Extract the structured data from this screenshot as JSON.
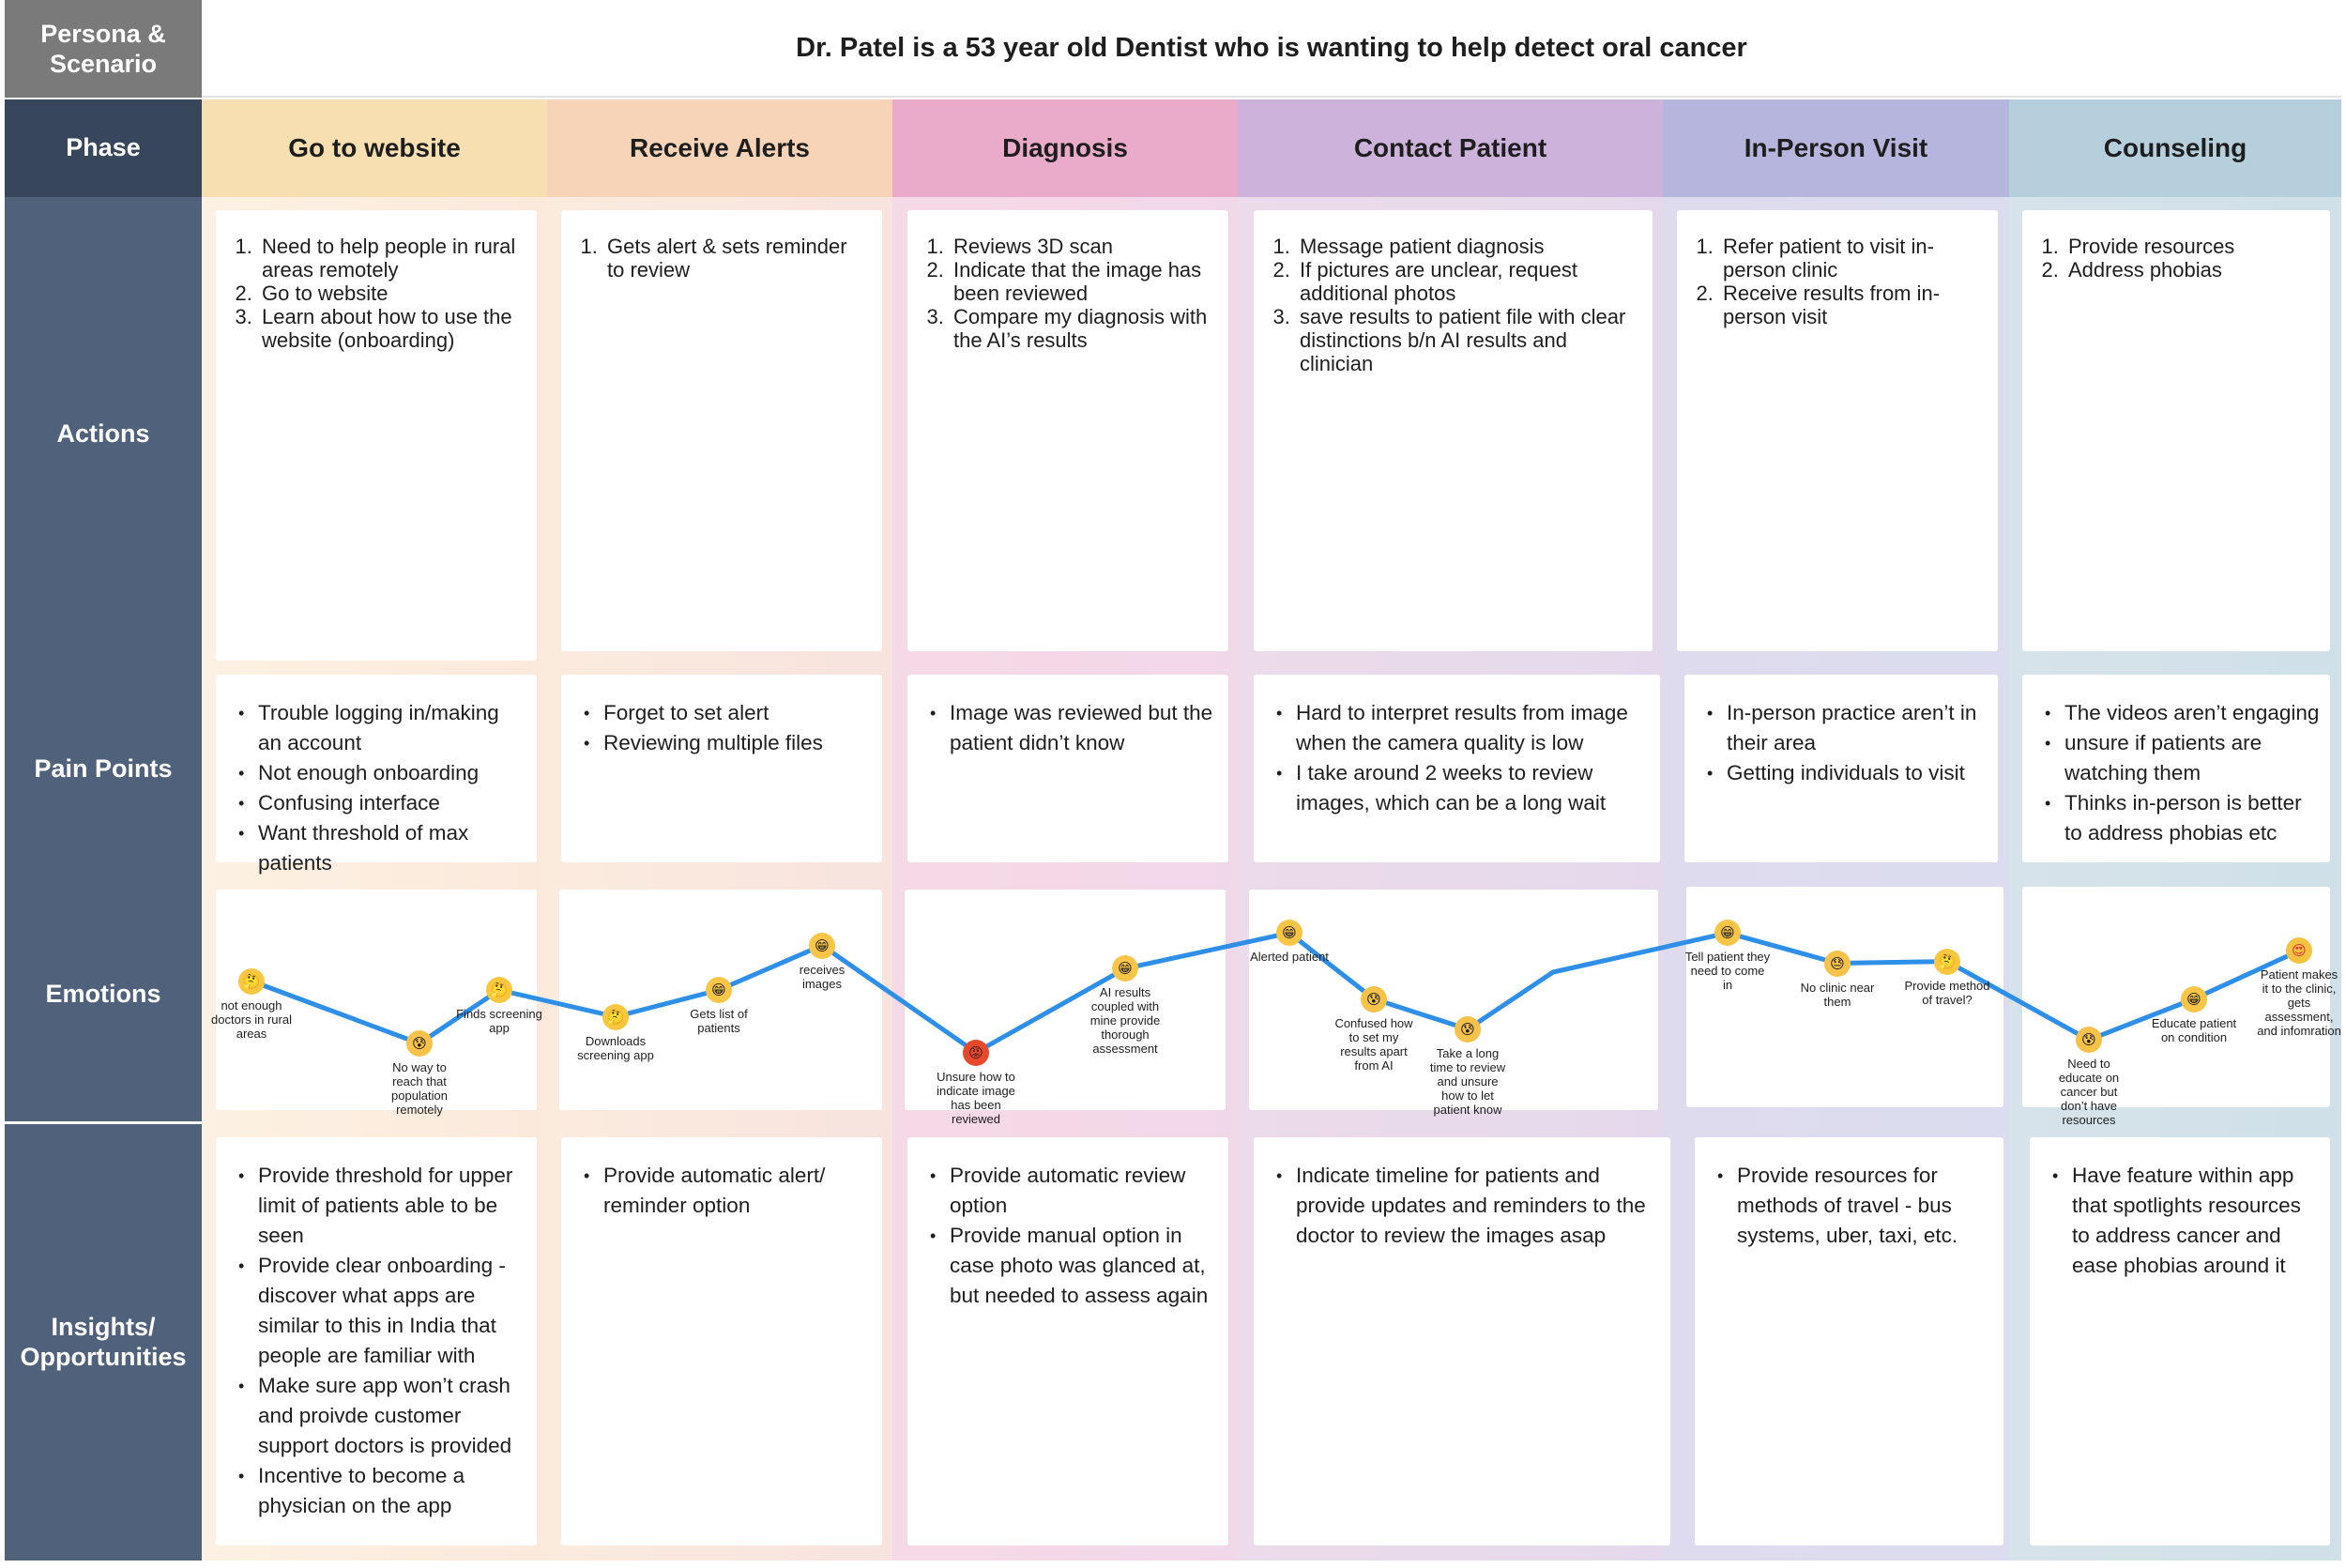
{
  "persona": {
    "label": "Persona & Scenario",
    "scenario": "Dr. Patel is a 53 year old Dentist who is wanting to help detect oral cancer"
  },
  "row_labels": {
    "phase": "Phase",
    "actions": "Actions",
    "pain_points": "Pain Points",
    "emotions": "Emotions",
    "insights": "Insights/ Opportunities"
  },
  "colors": {
    "header_dark": "#37465a",
    "row_slate": "#50617b",
    "persona_gray": "#7a7a7a",
    "line_blue": "#2e8fe8"
  },
  "phases": [
    {
      "name": "Go to website",
      "color": "#f8dfb1",
      "actions": [
        "Need to help people in rural areas remotely",
        "Go to website",
        "Learn about how to use the website (onboarding)"
      ],
      "pain_points": [
        "Trouble logging in/making an account",
        "Not enough onboarding",
        "Confusing interface",
        "Want threshold of max patients"
      ],
      "insights": [
        "Provide threshold for upper limit of patients able to be seen",
        "Provide clear onboarding - discover what apps are similar to this in India that people are familiar with",
        "Make sure app won’t crash and proivde customer support doctors is provided",
        "Incentive to become a physician on the app"
      ]
    },
    {
      "name": "Receive Alerts",
      "color": "#f7d3b8",
      "actions": [
        "Gets alert & sets reminder to review"
      ],
      "pain_points": [
        "Forget to set alert",
        "Reviewing multiple files"
      ],
      "insights": [
        "Provide automatic alert/ reminder option"
      ]
    },
    {
      "name": "Diagnosis",
      "color": "#eaaac9",
      "actions": [
        "Reviews 3D scan",
        "Indicate that the image has been reviewed",
        "Compare my diagnosis with the AI’s results"
      ],
      "pain_points": [
        "Image was reviewed but the patient didn’t know"
      ],
      "insights": [
        "Provide automatic review option",
        "Provide manual option in case photo was glanced at, but needed to assess again"
      ]
    },
    {
      "name": "Contact Patient",
      "color": "#cdb3dc",
      "actions": [
        "Message patient diagnosis",
        "If pictures are unclear, request additional photos",
        "save results to patient file with clear distinctions b/n AI results and clinician"
      ],
      "pain_points": [
        "Hard to interpret results from image when the camera quality is low",
        "I take around 2 weeks to review images, which can be a long wait"
      ],
      "insights": [
        "Indicate timeline for patients and provide updates and reminders to the doctor to review the images asap"
      ]
    },
    {
      "name": "In-Person Visit",
      "color": "#b5b5dd",
      "actions": [
        "Refer patient to visit in-person clinic",
        "Receive results from in-person visit"
      ],
      "pain_points": [
        "In-person practice aren’t in their area",
        "Getting individuals to visit"
      ],
      "insights": [
        "Provide resources for methods of travel - bus systems, uber, taxi, etc."
      ]
    },
    {
      "name": "Counseling",
      "color": "#b5cfdc",
      "actions": [
        "Provide resources",
        "Address phobias"
      ],
      "pain_points": [
        "The videos aren’t engaging",
        "unsure if patients are watching them",
        "Thinks in-person is better to address phobias etc"
      ],
      "insights": [
        "Have feature within app that spotlights resources to address cancer and ease phobias around it"
      ]
    }
  ],
  "emotions": [
    {
      "label": "not enough doctors in rural areas",
      "face": "thinking",
      "level": 0.55
    },
    {
      "label": "No way to reach that population remotely",
      "face": "anxious",
      "level": 0.2
    },
    {
      "label": "Finds screening app",
      "face": "thinking",
      "level": 0.5
    },
    {
      "label": "Downloads screening app",
      "face": "thinking",
      "level": 0.35
    },
    {
      "label": "Gets list of patients",
      "face": "grinning",
      "level": 0.5
    },
    {
      "label": "receives images",
      "face": "grinning",
      "level": 0.75
    },
    {
      "label": "Unsure how to indicate image has been reviewed",
      "face": "angry",
      "level": 0.15
    },
    {
      "label": "AI results coupled with mine provide thorough assessment",
      "face": "grinning",
      "level": 0.62
    },
    {
      "label": "Alerted patient",
      "face": "grinning",
      "level": 0.82
    },
    {
      "label": "Confused how to set my results apart from AI",
      "face": "anxious",
      "level": 0.45
    },
    {
      "label": "Take a long time to review and unsure how to let patient know",
      "face": "anxious",
      "level": 0.28
    },
    {
      "label": "",
      "face": "",
      "level": 0.6
    },
    {
      "label": "Tell patient they need to come in",
      "face": "grinning",
      "level": 0.82
    },
    {
      "label": "No clinic near them",
      "face": "sweat",
      "level": 0.65
    },
    {
      "label": "Provide method of travel?",
      "face": "thinking",
      "level": 0.66
    },
    {
      "label": "Need to educate on cancer but don’t have resources",
      "face": "anxious",
      "level": 0.22
    },
    {
      "label": "Educate patient on condition",
      "face": "grinning",
      "level": 0.45
    },
    {
      "label": "Patient makes it to the clinic, gets assessment, and infomration",
      "face": "heart-eyes",
      "level": 0.72
    }
  ]
}
